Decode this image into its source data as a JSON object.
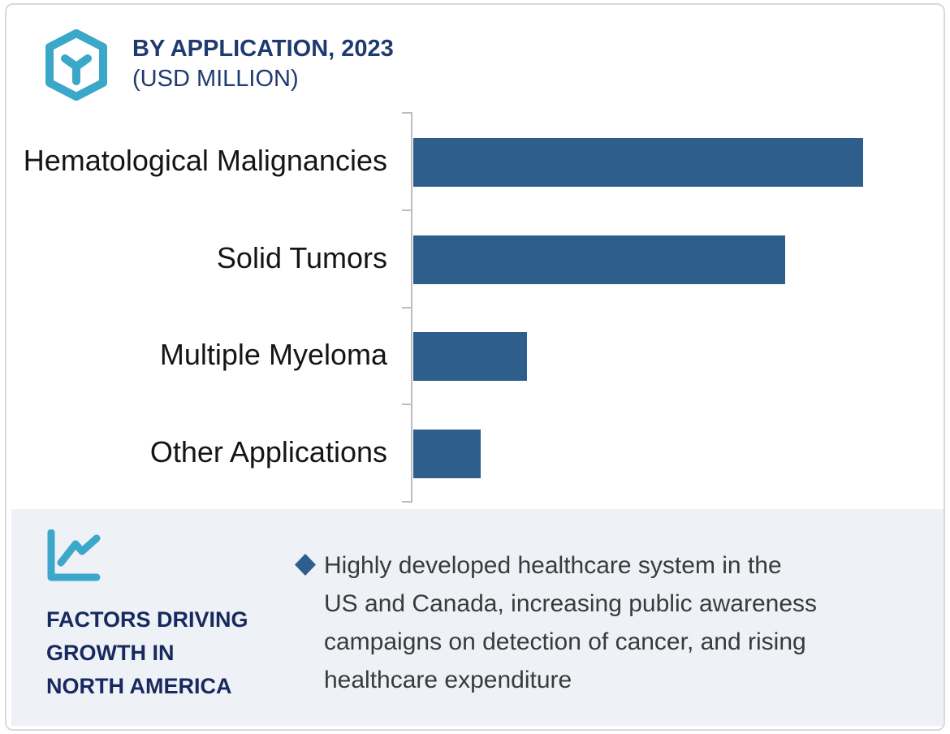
{
  "header": {
    "title": "BY APPLICATION, 2023",
    "subtitle": "(USD MILLION)",
    "logo_icon": "hexagon-cube-icon"
  },
  "chart_data": {
    "type": "bar",
    "orientation": "horizontal",
    "title": "BY APPLICATION, 2023",
    "value_unit": "USD MILLION",
    "categories": [
      "Hematological Malignancies",
      "Solid Tumors",
      "Multiple Myeloma",
      "Other Applications"
    ],
    "values_pct_of_max": [
      100,
      82.7,
      25.3,
      15.0
    ],
    "value_axis_labels_shown": false,
    "data_labels_shown": false,
    "grid": false,
    "legend": "none",
    "bar_color": "#2d5e8c",
    "axis_color": "#bdbdbd"
  },
  "footer": {
    "icon": "line-chart-icon",
    "heading_lines": [
      "FACTORS DRIVING",
      "GROWTH IN",
      "NORTH AMERICA"
    ],
    "heading_text": "FACTORS DRIVING GROWTH IN NORTH AMERICA",
    "bullet_marker": "diamond",
    "bullet_text": "Highly developed healthcare system in the US and Canada, increasing public awareness campaigns on detection of cancer, and rising healthcare expenditure",
    "bullet_lines": [
      "Highly developed healthcare system in the",
      "US and Canada, increasing public awareness",
      "campaigns on detection of cancer, and rising",
      "healthcare expenditure"
    ]
  },
  "colors": {
    "accent_teal": "#3ba7c9",
    "title_navy": "#1f3a70",
    "heading_navy": "#17295f",
    "bar_blue": "#2d5e8c",
    "body_text": "#3a3a3a",
    "label_black": "#151515",
    "axis_gray": "#bdbdbd",
    "panel_bg": "#eef1f6",
    "card_border": "#dadadc"
  }
}
